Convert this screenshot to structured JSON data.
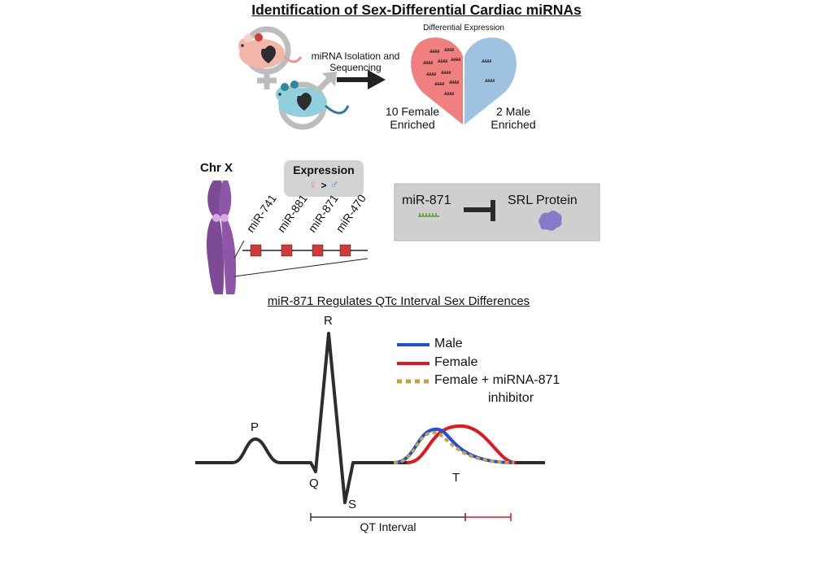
{
  "title": "Identification of Sex-Differential Cardiac miRNAs",
  "workflow": {
    "step_label_line1": "miRNA Isolation and",
    "step_label_line2": "Sequencing",
    "heart_title": "Differential Expression",
    "female_count_line1": "10 Female",
    "female_count_line2": "Enriched",
    "male_count_line1": "2 Male",
    "male_count_line2": "Enriched",
    "female_color": "#f07f7f",
    "male_color": "#9fc2e0"
  },
  "chromosome": {
    "label": "Chr X",
    "color": "#7d4a95",
    "expression_box": {
      "title": "Expression",
      "female_symbol": "♀",
      "comparator": ">",
      "male_symbol": "♂"
    },
    "mirnas": [
      "miR-741",
      "miR-881",
      "miR-871",
      "miR-470"
    ]
  },
  "regulation": {
    "mirna": "miR-871",
    "target": "SRL Protein",
    "box_color": "#d0d0d0"
  },
  "ecg": {
    "title": "miR-871 Regulates QTc Interval Sex Differences",
    "wave_labels": {
      "p": "P",
      "q": "Q",
      "r": "R",
      "s": "S",
      "t": "T"
    },
    "legend": [
      {
        "label": "Male",
        "color": "#1f4fe0",
        "style": "solid"
      },
      {
        "label": "Female",
        "color": "#e8141b",
        "style": "solid"
      },
      {
        "label": "Female + miRNA-871",
        "label2": "inhibitor",
        "color": "#c8a03c",
        "style": "dotted"
      }
    ],
    "interval_label": "QT Interval"
  }
}
